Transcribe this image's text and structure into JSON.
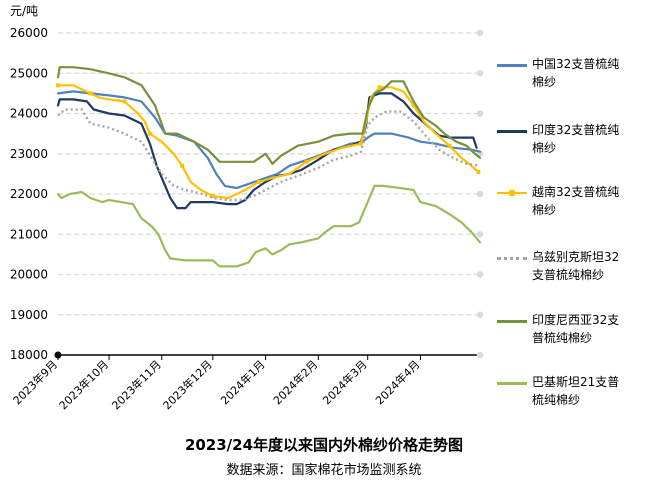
{
  "chart_data": {
    "type": "line",
    "title": "2023/24年度以来国内外棉纱价格走势图",
    "source": "数据来源：国家棉花市场监测系统",
    "ylabel": "元/吨",
    "ylim": [
      18000,
      26000
    ],
    "yticks": [
      18000,
      19000,
      20000,
      21000,
      22000,
      23000,
      24000,
      25000,
      26000
    ],
    "xlim": [
      "2023-09-01",
      "2024-05-06"
    ],
    "xticks": [
      {
        "date": "2023-09-01",
        "label": "2023年9月"
      },
      {
        "date": "2023-10-01",
        "label": "2023年10月"
      },
      {
        "date": "2023-11-01",
        "label": "2023年11月"
      },
      {
        "date": "2023-12-01",
        "label": "2023年12月"
      },
      {
        "date": "2024-01-01",
        "label": "2024年1月"
      },
      {
        "date": "2024-02-01",
        "label": "2024年2月"
      },
      {
        "date": "2024-03-01",
        "label": "2024年3月"
      },
      {
        "date": "2024-04-01",
        "label": "2024年4月"
      }
    ],
    "grid": true,
    "legend": "right",
    "series": [
      {
        "name": "中国32支普梳纯棉纱",
        "color": "#4f81bd",
        "dash": "solid",
        "marker": "none",
        "points": [
          [
            "2023-09-01",
            24500
          ],
          [
            "2023-09-10",
            24550
          ],
          [
            "2023-09-20",
            24500
          ],
          [
            "2023-10-01",
            24450
          ],
          [
            "2023-10-10",
            24400
          ],
          [
            "2023-10-20",
            24300
          ],
          [
            "2023-10-28",
            23900
          ],
          [
            "2023-11-03",
            23500
          ],
          [
            "2023-11-10",
            23450
          ],
          [
            "2023-11-20",
            23300
          ],
          [
            "2023-11-28",
            22900
          ],
          [
            "2023-12-03",
            22500
          ],
          [
            "2023-12-08",
            22200
          ],
          [
            "2023-12-15",
            22150
          ],
          [
            "2023-12-22",
            22250
          ],
          [
            "2024-01-01",
            22400
          ],
          [
            "2024-01-08",
            22500
          ],
          [
            "2024-01-15",
            22700
          ],
          [
            "2024-01-22",
            22800
          ],
          [
            "2024-02-01",
            22950
          ],
          [
            "2024-02-10",
            23100
          ],
          [
            "2024-02-20",
            23250
          ],
          [
            "2024-02-27",
            23300
          ],
          [
            "2024-03-01",
            23400
          ],
          [
            "2024-03-05",
            23500
          ],
          [
            "2024-03-15",
            23500
          ],
          [
            "2024-03-25",
            23400
          ],
          [
            "2024-04-01",
            23300
          ],
          [
            "2024-04-10",
            23250
          ],
          [
            "2024-04-20",
            23150
          ],
          [
            "2024-05-01",
            23100
          ],
          [
            "2024-05-06",
            23050
          ]
        ]
      },
      {
        "name": "印度32支普梳纯棉纱",
        "color": "#1f3864",
        "dash": "solid",
        "marker": "none",
        "points": [
          [
            "2023-09-01",
            24200
          ],
          [
            "2023-09-02",
            24350
          ],
          [
            "2023-09-10",
            24350
          ],
          [
            "2023-09-18",
            24300
          ],
          [
            "2023-09-22",
            24100
          ],
          [
            "2023-10-01",
            24000
          ],
          [
            "2023-10-10",
            23950
          ],
          [
            "2023-10-20",
            23750
          ],
          [
            "2023-10-25",
            23250
          ],
          [
            "2023-10-29",
            22700
          ],
          [
            "2023-11-02",
            22300
          ],
          [
            "2023-11-06",
            21900
          ],
          [
            "2023-11-10",
            21650
          ],
          [
            "2023-11-15",
            21650
          ],
          [
            "2023-11-18",
            21800
          ],
          [
            "2023-11-25",
            21800
          ],
          [
            "2023-12-01",
            21800
          ],
          [
            "2023-12-10",
            21750
          ],
          [
            "2023-12-15",
            21750
          ],
          [
            "2023-12-20",
            21850
          ],
          [
            "2023-12-25",
            22100
          ],
          [
            "2024-01-01",
            22300
          ],
          [
            "2024-01-08",
            22450
          ],
          [
            "2024-01-15",
            22500
          ],
          [
            "2024-01-22",
            22600
          ],
          [
            "2024-02-01",
            22850
          ],
          [
            "2024-02-10",
            23100
          ],
          [
            "2024-02-20",
            23200
          ],
          [
            "2024-02-26",
            23300
          ],
          [
            "2024-02-29",
            23700
          ],
          [
            "2024-03-02",
            24400
          ],
          [
            "2024-03-08",
            24500
          ],
          [
            "2024-03-15",
            24500
          ],
          [
            "2024-03-22",
            24300
          ],
          [
            "2024-03-28",
            24000
          ],
          [
            "2024-04-05",
            23700
          ],
          [
            "2024-04-12",
            23450
          ],
          [
            "2024-04-18",
            23400
          ],
          [
            "2024-04-25",
            23400
          ],
          [
            "2024-05-02",
            23400
          ],
          [
            "2024-05-04",
            23150
          ]
        ]
      },
      {
        "name": "越南32支普梳纯棉纱",
        "color": "#ffc000",
        "dash": "solid",
        "marker": "dot",
        "points": [
          [
            "2023-09-01",
            24700
          ],
          [
            "2023-09-10",
            24700
          ],
          [
            "2023-09-15",
            24600
          ],
          [
            "2023-09-20",
            24500
          ],
          [
            "2023-09-25",
            24400
          ],
          [
            "2023-10-01",
            24350
          ],
          [
            "2023-10-10",
            24300
          ],
          [
            "2023-10-18",
            24000
          ],
          [
            "2023-10-22",
            23800
          ],
          [
            "2023-10-25",
            23500
          ],
          [
            "2023-11-01",
            23300
          ],
          [
            "2023-11-08",
            23000
          ],
          [
            "2023-11-13",
            22700
          ],
          [
            "2023-11-18",
            22300
          ],
          [
            "2023-11-24",
            22100
          ],
          [
            "2023-12-01",
            21950
          ],
          [
            "2023-12-10",
            21900
          ],
          [
            "2023-12-20",
            22100
          ],
          [
            "2023-12-28",
            22300
          ],
          [
            "2024-01-05",
            22400
          ],
          [
            "2024-01-15",
            22500
          ],
          [
            "2024-01-25",
            22800
          ],
          [
            "2024-02-05",
            23000
          ],
          [
            "2024-02-15",
            23150
          ],
          [
            "2024-02-26",
            23250
          ],
          [
            "2024-02-29",
            23800
          ],
          [
            "2024-03-03",
            24400
          ],
          [
            "2024-03-08",
            24650
          ],
          [
            "2024-03-15",
            24650
          ],
          [
            "2024-03-22",
            24550
          ],
          [
            "2024-03-28",
            24200
          ],
          [
            "2024-04-03",
            23800
          ],
          [
            "2024-04-10",
            23500
          ],
          [
            "2024-04-18",
            23200
          ],
          [
            "2024-04-25",
            22900
          ],
          [
            "2024-05-01",
            22700
          ],
          [
            "2024-05-05",
            22550
          ]
        ]
      },
      {
        "name": "乌兹别克斯坦32支普梳纯棉纱",
        "color": "#a5a5a5",
        "dash": "dotted",
        "marker": "none",
        "points": [
          [
            "2023-09-01",
            23950
          ],
          [
            "2023-09-05",
            24100
          ],
          [
            "2023-09-15",
            24100
          ],
          [
            "2023-09-20",
            23750
          ],
          [
            "2023-10-01",
            23650
          ],
          [
            "2023-10-10",
            23500
          ],
          [
            "2023-10-20",
            23300
          ],
          [
            "2023-10-26",
            22900
          ],
          [
            "2023-11-01",
            22500
          ],
          [
            "2023-11-08",
            22200
          ],
          [
            "2023-11-15",
            22100
          ],
          [
            "2023-11-25",
            22000
          ],
          [
            "2023-12-01",
            21900
          ],
          [
            "2023-12-10",
            21850
          ],
          [
            "2023-12-18",
            21850
          ],
          [
            "2023-12-25",
            21950
          ],
          [
            "2024-01-01",
            22100
          ],
          [
            "2024-01-10",
            22300
          ],
          [
            "2024-01-20",
            22450
          ],
          [
            "2024-02-01",
            22650
          ],
          [
            "2024-02-10",
            22850
          ],
          [
            "2024-02-20",
            22950
          ],
          [
            "2024-02-26",
            23050
          ],
          [
            "2024-03-01",
            23700
          ],
          [
            "2024-03-05",
            23900
          ],
          [
            "2024-03-12",
            24050
          ],
          [
            "2024-03-20",
            24050
          ],
          [
            "2024-03-28",
            23800
          ],
          [
            "2024-04-05",
            23400
          ],
          [
            "2024-04-12",
            23100
          ],
          [
            "2024-04-20",
            22900
          ],
          [
            "2024-04-28",
            22750
          ],
          [
            "2024-05-06",
            22700
          ]
        ]
      },
      {
        "name": "印度尼西亚32支普梳纯棉纱",
        "color": "#76923c",
        "dash": "solid",
        "marker": "none",
        "points": [
          [
            "2023-09-01",
            24900
          ],
          [
            "2023-09-02",
            25150
          ],
          [
            "2023-09-10",
            25150
          ],
          [
            "2023-09-20",
            25100
          ],
          [
            "2023-10-01",
            25000
          ],
          [
            "2023-10-10",
            24900
          ],
          [
            "2023-10-20",
            24700
          ],
          [
            "2023-10-28",
            24200
          ],
          [
            "2023-11-03",
            23500
          ],
          [
            "2023-11-10",
            23500
          ],
          [
            "2023-11-20",
            23300
          ],
          [
            "2023-11-28",
            23100
          ],
          [
            "2023-12-05",
            22800
          ],
          [
            "2023-12-15",
            22800
          ],
          [
            "2023-12-25",
            22800
          ],
          [
            "2024-01-01",
            23000
          ],
          [
            "2024-01-05",
            22750
          ],
          [
            "2024-01-10",
            22950
          ],
          [
            "2024-01-20",
            23200
          ],
          [
            "2024-02-01",
            23300
          ],
          [
            "2024-02-10",
            23450
          ],
          [
            "2024-02-20",
            23500
          ],
          [
            "2024-02-27",
            23500
          ],
          [
            "2024-03-01",
            24100
          ],
          [
            "2024-03-05",
            24500
          ],
          [
            "2024-03-10",
            24600
          ],
          [
            "2024-03-15",
            24800
          ],
          [
            "2024-03-22",
            24800
          ],
          [
            "2024-03-28",
            24300
          ],
          [
            "2024-04-03",
            23900
          ],
          [
            "2024-04-10",
            23700
          ],
          [
            "2024-04-15",
            23500
          ],
          [
            "2024-04-22",
            23300
          ],
          [
            "2024-04-28",
            23200
          ],
          [
            "2024-05-03",
            23000
          ],
          [
            "2024-05-06",
            22900
          ]
        ]
      },
      {
        "name": "巴基斯坦21支普梳纯棉纱",
        "color": "#9bbb59",
        "dash": "solid",
        "marker": "none",
        "points": [
          [
            "2023-09-01",
            22000
          ],
          [
            "2023-09-03",
            21900
          ],
          [
            "2023-09-08",
            22000
          ],
          [
            "2023-09-15",
            22050
          ],
          [
            "2023-09-20",
            21900
          ],
          [
            "2023-09-27",
            21800
          ],
          [
            "2023-10-01",
            21850
          ],
          [
            "2023-10-08",
            21800
          ],
          [
            "2023-10-15",
            21750
          ],
          [
            "2023-10-20",
            21400
          ],
          [
            "2023-10-26",
            21200
          ],
          [
            "2023-10-30",
            21000
          ],
          [
            "2023-11-03",
            20600
          ],
          [
            "2023-11-06",
            20400
          ],
          [
            "2023-11-15",
            20350
          ],
          [
            "2023-11-25",
            20350
          ],
          [
            "2023-12-01",
            20350
          ],
          [
            "2023-12-05",
            20200
          ],
          [
            "2023-12-15",
            20200
          ],
          [
            "2023-12-22",
            20300
          ],
          [
            "2023-12-26",
            20550
          ],
          [
            "2024-01-01",
            20650
          ],
          [
            "2024-01-05",
            20500
          ],
          [
            "2024-01-10",
            20600
          ],
          [
            "2024-01-15",
            20750
          ],
          [
            "2024-01-22",
            20800
          ],
          [
            "2024-02-01",
            20900
          ],
          [
            "2024-02-05",
            21050
          ],
          [
            "2024-02-10",
            21200
          ],
          [
            "2024-02-20",
            21200
          ],
          [
            "2024-02-25",
            21300
          ],
          [
            "2024-02-29",
            21700
          ],
          [
            "2024-03-03",
            22000
          ],
          [
            "2024-03-05",
            22200
          ],
          [
            "2024-03-10",
            22200
          ],
          [
            "2024-03-20",
            22150
          ],
          [
            "2024-03-28",
            22100
          ],
          [
            "2024-04-01",
            21800
          ],
          [
            "2024-04-10",
            21700
          ],
          [
            "2024-04-18",
            21500
          ],
          [
            "2024-04-25",
            21300
          ],
          [
            "2024-05-01",
            21050
          ],
          [
            "2024-05-06",
            20800
          ]
        ]
      }
    ]
  },
  "legend_items": [
    {
      "lines": [
        "中国32支普梳纯",
        "棉纱"
      ]
    },
    {
      "lines": [
        "印度32支普梳纯",
        "棉纱"
      ]
    },
    {
      "lines": [
        "越南32支普梳纯",
        "棉纱"
      ]
    },
    {
      "lines": [
        "乌兹别克斯坦32",
        "支普梳纯棉纱"
      ]
    },
    {
      "lines": [
        "印度尼西亚32支",
        "普梳纯棉纱"
      ]
    },
    {
      "lines": [
        "巴基斯坦21支普",
        "梳纯棉纱"
      ]
    }
  ]
}
